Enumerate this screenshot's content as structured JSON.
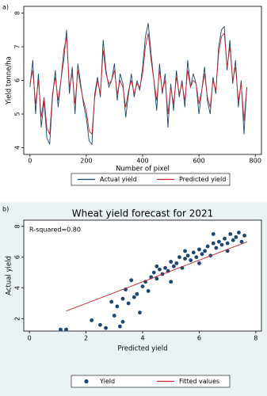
{
  "chart_data": [
    {
      "type": "line",
      "label": "a)",
      "xlabel": "Number of pixel",
      "ylabel": "Yield tonne/ha",
      "x": [
        0,
        10,
        20,
        30,
        40,
        50,
        60,
        70,
        80,
        90,
        100,
        110,
        120,
        130,
        140,
        150,
        160,
        170,
        180,
        190,
        200,
        210,
        220,
        230,
        240,
        250,
        260,
        270,
        280,
        290,
        300,
        310,
        320,
        330,
        340,
        350,
        360,
        370,
        380,
        390,
        400,
        410,
        420,
        430,
        440,
        450,
        460,
        470,
        480,
        490,
        500,
        510,
        520,
        530,
        540,
        550,
        560,
        570,
        580,
        590,
        600,
        610,
        620,
        630,
        640,
        650,
        660,
        670,
        680,
        690,
        700,
        710,
        720,
        730,
        740,
        750,
        760,
        770
      ],
      "series": [
        {
          "name": "Actual yield",
          "color": "#1a476f",
          "values": [
            5.8,
            6.6,
            5.0,
            6.2,
            4.6,
            5.4,
            4.3,
            4.1,
            5.5,
            6.3,
            5.2,
            6.0,
            6.6,
            7.5,
            5.6,
            6.4,
            5.0,
            6.5,
            5.9,
            5.3,
            4.9,
            4.2,
            4.1,
            5.6,
            6.1,
            5.5,
            7.2,
            6.3,
            5.8,
            6.0,
            6.5,
            5.4,
            6.2,
            5.9,
            4.9,
            5.6,
            6.2,
            5.5,
            6.0,
            5.7,
            6.4,
            7.3,
            7.7,
            6.8,
            6.0,
            5.1,
            6.5,
            5.6,
            6.2,
            4.6,
            5.9,
            5.1,
            6.3,
            5.5,
            6.0,
            5.2,
            6.6,
            5.8,
            6.2,
            5.9,
            5.0,
            5.7,
            6.4,
            5.4,
            5.0,
            6.1,
            5.6,
            7.0,
            7.5,
            7.6,
            6.3,
            7.2,
            5.9,
            6.6,
            5.2,
            6.0,
            4.4,
            5.8
          ]
        },
        {
          "name": "Predicted yield",
          "color": "#c1272d",
          "values": [
            5.9,
            6.3,
            5.3,
            6.0,
            4.9,
            5.5,
            4.6,
            4.4,
            5.6,
            6.1,
            5.4,
            6.0,
            6.9,
            7.3,
            5.8,
            6.2,
            5.3,
            6.3,
            5.8,
            5.4,
            5.1,
            4.5,
            4.4,
            5.5,
            6.0,
            5.6,
            6.9,
            6.2,
            5.9,
            6.0,
            6.3,
            5.6,
            6.0,
            5.8,
            5.2,
            5.7,
            6.0,
            5.6,
            5.9,
            5.8,
            6.2,
            7.0,
            7.4,
            6.6,
            6.0,
            5.4,
            6.3,
            5.7,
            6.0,
            5.0,
            5.8,
            5.3,
            6.1,
            5.6,
            5.9,
            5.4,
            6.3,
            5.8,
            6.0,
            5.9,
            5.3,
            5.7,
            6.2,
            5.5,
            5.2,
            6.0,
            5.7,
            6.8,
            7.3,
            7.4,
            6.4,
            7.0,
            6.0,
            6.4,
            5.4,
            5.9,
            4.8,
            5.8
          ]
        }
      ],
      "xlim": [
        -22,
        822
      ],
      "ylim": [
        3.8,
        8.2
      ],
      "xticks": [
        0,
        200,
        400,
        600,
        800
      ],
      "yticks": [
        4,
        5,
        6,
        7,
        8
      ],
      "grid": false,
      "legend": "bottom"
    },
    {
      "type": "scatter",
      "label": "b)",
      "title": "Wheat yield forecast for 2021",
      "annotation": "R-squared=0.80",
      "xlabel": "Predicted yield",
      "ylabel": "Actual yield",
      "series": [
        {
          "name": "Yield",
          "color": "#1a476f",
          "type": "scatter",
          "x": [
            1.1,
            1.3,
            2.2,
            2.5,
            2.7,
            2.9,
            3.0,
            3.1,
            3.2,
            3.3,
            3.3,
            3.4,
            3.5,
            3.6,
            3.7,
            3.8,
            3.9,
            4.0,
            4.1,
            4.2,
            4.3,
            4.4,
            4.5,
            4.6,
            4.7,
            4.8,
            4.9,
            5.0,
            5.1,
            5.2,
            5.3,
            5.4,
            5.5,
            5.6,
            5.7,
            5.8,
            5.9,
            6.0,
            6.1,
            6.2,
            6.3,
            6.4,
            6.5,
            6.6,
            6.7,
            6.8,
            6.9,
            7.0,
            7.1,
            7.2,
            7.3,
            7.4,
            7.5,
            7.6,
            5.0,
            5.5,
            6.0,
            6.5,
            4.5,
            7.0
          ],
          "values": [
            1.3,
            1.3,
            1.9,
            1.6,
            1.4,
            3.1,
            2.2,
            2.8,
            1.5,
            3.3,
            1.8,
            3.9,
            3.0,
            4.5,
            3.4,
            3.6,
            2.4,
            4.1,
            4.4,
            3.8,
            4.7,
            5.0,
            4.6,
            5.2,
            4.9,
            5.3,
            5.1,
            5.7,
            5.4,
            5.6,
            6.0,
            5.3,
            5.9,
            6.1,
            5.8,
            6.3,
            6.0,
            6.5,
            6.2,
            6.4,
            6.7,
            6.1,
            6.9,
            6.6,
            7.0,
            6.8,
            7.2,
            6.9,
            7.5,
            7.1,
            7.3,
            7.6,
            7.0,
            7.4,
            4.4,
            6.4,
            5.6,
            7.5,
            5.4,
            6.4
          ]
        },
        {
          "name": "Fitted values",
          "color": "#c1272d",
          "type": "line",
          "x": [
            1.3,
            7.7
          ],
          "values": [
            2.5,
            7.0
          ]
        }
      ],
      "xlim": [
        -0.2,
        8.2
      ],
      "ylim": [
        1.2,
        8.4
      ],
      "xticks": [
        0,
        2,
        4,
        6,
        8
      ],
      "yticks": [
        2,
        4,
        6,
        8
      ],
      "grid": false,
      "legend": "bottom"
    }
  ]
}
